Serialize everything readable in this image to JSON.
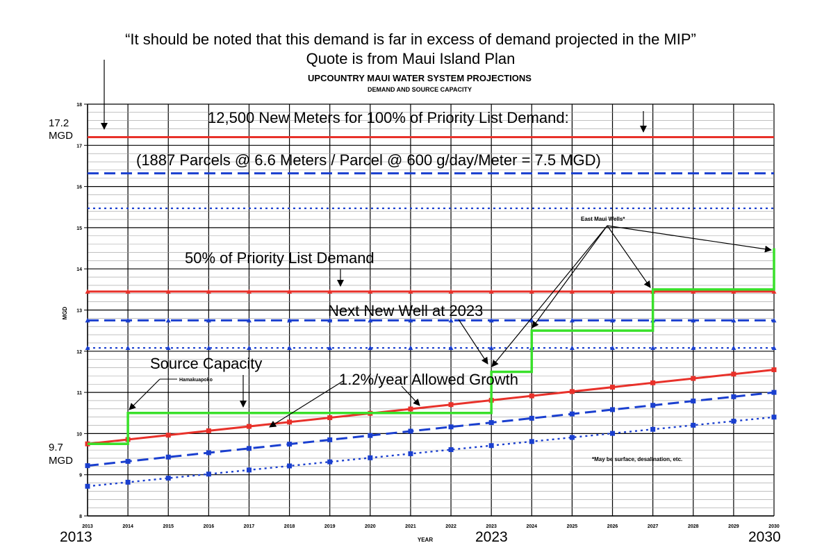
{
  "chart_data": {
    "type": "line",
    "header_quote": "“It should be noted that this demand is far in excess of demand projected in the MIP”",
    "header_source": "Quote is from Maui Island Plan",
    "title": "UPCOUNTRY MAUI WATER SYSTEM PROJECTIONS",
    "subtitle": "DEMAND AND SOURCE CAPACITY",
    "xlabel": "YEAR",
    "ylabel": "MGD",
    "xlim": [
      2013,
      2030
    ],
    "ylim": [
      8,
      18
    ],
    "x_ticks": [
      2013,
      2014,
      2015,
      2016,
      2017,
      2018,
      2019,
      2020,
      2021,
      2022,
      2023,
      2024,
      2025,
      2026,
      2027,
      2028,
      2029,
      2030
    ],
    "y_ticks": [
      8,
      9,
      10,
      11,
      12,
      13,
      14,
      15,
      16,
      17,
      18
    ],
    "grid": true,
    "axis_big_labels": {
      "start": "2013",
      "mid": "2023",
      "end": "2030"
    },
    "left_callouts": [
      {
        "line1": "17.2",
        "line2": "MGD",
        "value": 17.2
      },
      {
        "line1": "9.7",
        "line2": "MGD",
        "value": 9.7
      }
    ],
    "horizontal_lines": [
      {
        "value": 17.2,
        "color": "#e8312a",
        "style": "solid"
      },
      {
        "value": 16.32,
        "color": "#1a3fcf",
        "style": "dash"
      },
      {
        "value": 15.47,
        "color": "#1a3fcf",
        "style": "dot"
      },
      {
        "value": 13.45,
        "color": "#e8312a",
        "style": "solid",
        "markers": "triangle"
      },
      {
        "value": 12.75,
        "color": "#1a3fcf",
        "style": "dash",
        "markers": "triangle"
      },
      {
        "value": 12.08,
        "color": "#1a3fcf",
        "style": "dot",
        "markers": "triangle"
      }
    ],
    "series": [
      {
        "color": "#e8312a",
        "style": "solid",
        "markers": "square",
        "x": [
          2013,
          2030
        ],
        "y": [
          9.75,
          11.55
        ]
      },
      {
        "color": "#1a3fcf",
        "style": "dash",
        "markers": "square",
        "x": [
          2013,
          2030
        ],
        "y": [
          9.22,
          11.0
        ]
      },
      {
        "color": "#1a3fcf",
        "style": "dot",
        "markers": "square",
        "x": [
          2013,
          2030
        ],
        "y": [
          8.72,
          10.4
        ]
      }
    ],
    "source_capacity": {
      "color": "#39e02a",
      "steps": [
        [
          2013,
          9.75
        ],
        [
          2014,
          9.75
        ],
        [
          2014,
          10.5
        ],
        [
          2023,
          10.5
        ],
        [
          2023,
          11.5
        ],
        [
          2024,
          11.5
        ],
        [
          2024,
          12.5
        ],
        [
          2027,
          12.5
        ],
        [
          2027,
          13.5
        ],
        [
          2030,
          13.5
        ],
        [
          2030,
          14.5
        ]
      ]
    },
    "annotations": {
      "meters_100": "12,500 New Meters for 100% of Priority List Demand:",
      "parcels": "(1887 Parcels @ 6.6 Meters / Parcel @ 600 g/day/Meter = 7.5 MGD)",
      "priority_50": "50% of Priority List Demand",
      "next_well": "Next New Well at 2023",
      "source_capacity": "Source Capacity",
      "allowed_growth": "1.2%/year Allowed Growth",
      "hamakuapoko": "Hamakuapoko",
      "east_maui_wells": "East Maui Wells*",
      "footnote": "*May be surface, desalination, etc."
    }
  }
}
